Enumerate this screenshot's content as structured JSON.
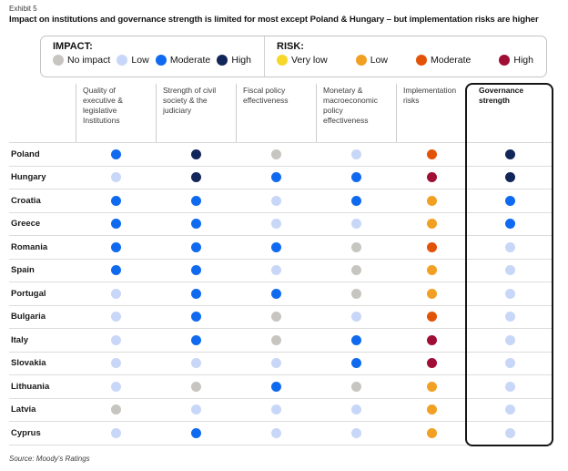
{
  "exhibit_label": "Exhibit 5",
  "title": "Impact on institutions and governance strength is limited for most except Poland & Hungary – but implementation risks are higher",
  "source": "Source: Moody's Ratings",
  "colors": {
    "no_impact": "#c6c5c0",
    "impact_low": "#c8d7f8",
    "impact_moderate": "#0f6af0",
    "impact_high": "#12265a",
    "risk_very_low": "#f7d829",
    "risk_low": "#f2a024",
    "risk_moderate": "#e25308",
    "risk_high": "#a00e35"
  },
  "legend": {
    "impact": {
      "label": "IMPACT:",
      "items": [
        {
          "label": "No impact",
          "color": "no_impact"
        },
        {
          "label": "Low",
          "color": "impact_low"
        },
        {
          "label": "Moderate",
          "color": "impact_moderate"
        },
        {
          "label": "High",
          "color": "impact_high"
        }
      ]
    },
    "risk": {
      "label": "RISK:",
      "items": [
        {
          "label": "Very low",
          "color": "risk_very_low"
        },
        {
          "label": "Low",
          "color": "risk_low"
        },
        {
          "label": "Moderate",
          "color": "risk_moderate"
        },
        {
          "label": "High",
          "color": "risk_high"
        }
      ]
    }
  },
  "chart_data": {
    "type": "table",
    "title": "Impact on institutions and governance strength is limited for most except Poland & Hungary – but implementation risks are higher",
    "impact_scale": [
      "No impact",
      "Low",
      "Moderate",
      "High"
    ],
    "risk_scale": [
      "Very low",
      "Low",
      "Moderate",
      "High"
    ],
    "columns": [
      "Quality of executive & legislative Institutions",
      "Strength of civil society & the judiciary",
      "Fiscal policy effectiveness",
      "Monetary & macroeconomic policy effectiveness",
      "Implementation risks",
      "Governance strength"
    ],
    "rows": [
      {
        "country": "Poland",
        "values": [
          "impact_moderate",
          "impact_high",
          "no_impact",
          "impact_low",
          "risk_moderate",
          "impact_high"
        ]
      },
      {
        "country": "Hungary",
        "values": [
          "impact_low",
          "impact_high",
          "impact_moderate",
          "impact_moderate",
          "risk_high",
          "impact_high"
        ]
      },
      {
        "country": "Croatia",
        "values": [
          "impact_moderate",
          "impact_moderate",
          "impact_low",
          "impact_moderate",
          "risk_low",
          "impact_moderate"
        ]
      },
      {
        "country": "Greece",
        "values": [
          "impact_moderate",
          "impact_moderate",
          "impact_low",
          "impact_low",
          "risk_low",
          "impact_moderate"
        ]
      },
      {
        "country": "Romania",
        "values": [
          "impact_moderate",
          "impact_moderate",
          "impact_moderate",
          "no_impact",
          "risk_moderate",
          "impact_low"
        ]
      },
      {
        "country": "Spain",
        "values": [
          "impact_moderate",
          "impact_moderate",
          "impact_low",
          "no_impact",
          "risk_low",
          "impact_low"
        ]
      },
      {
        "country": "Portugal",
        "values": [
          "impact_low",
          "impact_moderate",
          "impact_moderate",
          "no_impact",
          "risk_low",
          "impact_low"
        ]
      },
      {
        "country": "Bulgaria",
        "values": [
          "impact_low",
          "impact_moderate",
          "no_impact",
          "impact_low",
          "risk_moderate",
          "impact_low"
        ]
      },
      {
        "country": "Italy",
        "values": [
          "impact_low",
          "impact_moderate",
          "no_impact",
          "impact_moderate",
          "risk_high",
          "impact_low"
        ]
      },
      {
        "country": "Slovakia",
        "values": [
          "impact_low",
          "impact_low",
          "impact_low",
          "impact_moderate",
          "risk_high",
          "impact_low"
        ]
      },
      {
        "country": "Lithuania",
        "values": [
          "impact_low",
          "no_impact",
          "impact_moderate",
          "no_impact",
          "risk_low",
          "impact_low"
        ]
      },
      {
        "country": "Latvia",
        "values": [
          "no_impact",
          "impact_low",
          "impact_low",
          "impact_low",
          "risk_low",
          "impact_low"
        ]
      },
      {
        "country": "Cyprus",
        "values": [
          "impact_low",
          "impact_moderate",
          "impact_low",
          "impact_low",
          "risk_low",
          "impact_low"
        ]
      }
    ]
  }
}
